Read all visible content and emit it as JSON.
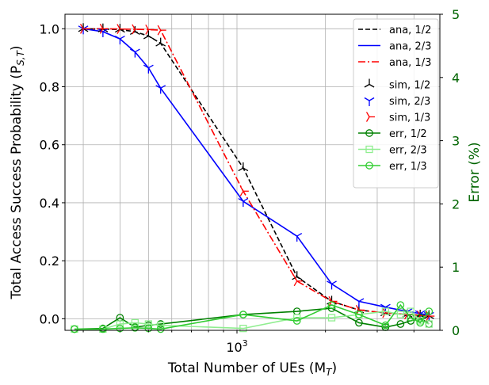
{
  "chart_data": {
    "type": "line",
    "xscale": "log",
    "xlabel": "Total Number of UEs (M_T)",
    "ylabel": "Total Access Success Probability (P_{S,T})",
    "y2label": "Error (%)",
    "xlim": [
      260,
      4900
    ],
    "ylim": [
      -0.04,
      1.05
    ],
    "y2lim": [
      0,
      5
    ],
    "xticks": [
      {
        "value": 1000,
        "label": "10^3"
      }
    ],
    "yticks": [
      "0.0",
      "0.2",
      "0.4",
      "0.6",
      "0.8",
      "1.0"
    ],
    "y2ticks": [
      "0",
      "1",
      "2",
      "3",
      "4",
      "5"
    ],
    "grid": true,
    "legend_position": "top-right",
    "colors": {
      "black": "#000000",
      "blue": "#0000ff",
      "red": "#ff0000",
      "green": "#008000",
      "lightgreen": "#90ee90",
      "lime": "#32cd32",
      "axis2": "#006400"
    },
    "series": [
      {
        "name": "ana, 1/2",
        "axis": "left",
        "style": "dashed",
        "color": "#000000",
        "marker": "none",
        "x": [
          300,
          350,
          400,
          450,
          500,
          550,
          1050,
          1600,
          2100,
          2600,
          3200,
          3800,
          4200,
          4500
        ],
        "y": [
          1.0,
          0.999,
          0.997,
          0.99,
          0.975,
          0.95,
          0.52,
          0.145,
          0.06,
          0.03,
          0.02,
          0.015,
          0.012,
          0.01
        ]
      },
      {
        "name": "ana, 2/3",
        "axis": "left",
        "style": "solid",
        "color": "#0000ff",
        "marker": "none",
        "x": [
          300,
          350,
          400,
          450,
          500,
          550,
          1050,
          1600,
          2100,
          2600,
          3200,
          3800,
          4200,
          4500
        ],
        "y": [
          1.0,
          0.99,
          0.965,
          0.92,
          0.865,
          0.795,
          0.405,
          0.285,
          0.12,
          0.06,
          0.04,
          0.025,
          0.018,
          0.012
        ]
      },
      {
        "name": "ana, 1/3",
        "axis": "left",
        "style": "dashdot",
        "color": "#ff0000",
        "marker": "none",
        "x": [
          300,
          350,
          400,
          450,
          500,
          550,
          1050,
          1600,
          2100,
          2600,
          3200,
          3800,
          4200,
          4500
        ],
        "y": [
          1.0,
          1.0,
          0.999,
          0.998,
          0.997,
          0.995,
          0.44,
          0.13,
          0.06,
          0.03,
          0.02,
          0.015,
          0.011,
          0.009
        ]
      },
      {
        "name": "sim, 1/2",
        "axis": "left",
        "style": "none",
        "color": "#000000",
        "marker": "tri_down",
        "x": [
          300,
          350,
          400,
          450,
          500,
          550,
          1050,
          1600,
          2100,
          2600,
          3200,
          3800,
          4200,
          4500
        ],
        "y": [
          1.0,
          0.999,
          0.998,
          0.99,
          0.975,
          0.95,
          0.52,
          0.145,
          0.06,
          0.03,
          0.02,
          0.015,
          0.012,
          0.01
        ]
      },
      {
        "name": "sim, 2/3",
        "axis": "left",
        "style": "none",
        "color": "#0000ff",
        "marker": "tri_up",
        "x": [
          300,
          350,
          400,
          450,
          500,
          550,
          1050,
          1600,
          2100,
          2600,
          3200,
          3800,
          4200,
          4500
        ],
        "y": [
          1.0,
          0.99,
          0.965,
          0.92,
          0.865,
          0.795,
          0.405,
          0.285,
          0.12,
          0.06,
          0.04,
          0.025,
          0.018,
          0.012
        ]
      },
      {
        "name": "sim, 1/3",
        "axis": "left",
        "style": "none",
        "color": "#ff0000",
        "marker": "tri_left",
        "x": [
          300,
          350,
          400,
          450,
          500,
          550,
          1050,
          1600,
          2100,
          2600,
          3200,
          3800,
          4200,
          4500
        ],
        "y": [
          1.0,
          1.0,
          0.999,
          0.998,
          0.997,
          0.995,
          0.44,
          0.13,
          0.06,
          0.03,
          0.02,
          0.015,
          0.011,
          0.009
        ]
      },
      {
        "name": "err, 1/2",
        "axis": "right",
        "style": "solid",
        "color": "#008000",
        "marker": "circle",
        "x": [
          280,
          350,
          400,
          450,
          500,
          550,
          1050,
          1600,
          2100,
          2600,
          3200,
          3600,
          3900,
          4200,
          4500
        ],
        "y": [
          0.02,
          0.03,
          0.2,
          0.05,
          0.08,
          0.1,
          0.25,
          0.3,
          0.35,
          0.12,
          0.05,
          0.1,
          0.15,
          0.2,
          0.1
        ]
      },
      {
        "name": "err, 2/3",
        "axis": "right",
        "style": "solid",
        "color": "#90ee90",
        "marker": "square",
        "x": [
          280,
          350,
          400,
          450,
          500,
          550,
          1050,
          1600,
          2100,
          2600,
          3200,
          3600,
          3900,
          4200,
          4500
        ],
        "y": [
          0.02,
          0.02,
          0.1,
          0.12,
          0.1,
          0.08,
          0.03,
          0.2,
          0.2,
          0.25,
          0.3,
          0.25,
          0.3,
          0.15,
          0.1
        ]
      },
      {
        "name": "err, 1/3",
        "axis": "right",
        "style": "solid",
        "color": "#32cd32",
        "marker": "circle",
        "x": [
          280,
          350,
          400,
          450,
          500,
          550,
          1050,
          1600,
          2100,
          2600,
          3200,
          3600,
          3900,
          4200,
          4500
        ],
        "y": [
          0.02,
          0.02,
          0.03,
          0.04,
          0.03,
          0.02,
          0.25,
          0.15,
          0.4,
          0.25,
          0.08,
          0.4,
          0.2,
          0.12,
          0.3
        ]
      }
    ]
  }
}
